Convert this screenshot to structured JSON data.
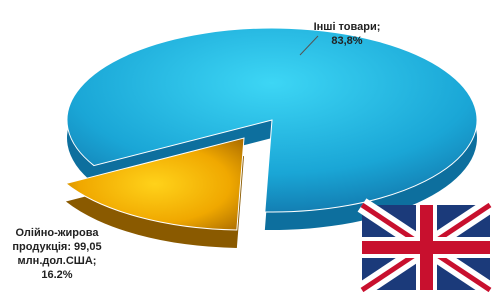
{
  "chart_data": {
    "type": "pie",
    "categories": [
      "Інші товари;",
      "Олійно-жирова продукція: 99,05 млн.дол.США;"
    ],
    "values": [
      83.8,
      16.2
    ],
    "value_labels": [
      "83,8%",
      "16.2%"
    ],
    "colors": [
      "#1fb3e0",
      "#f2b705"
    ]
  }
}
